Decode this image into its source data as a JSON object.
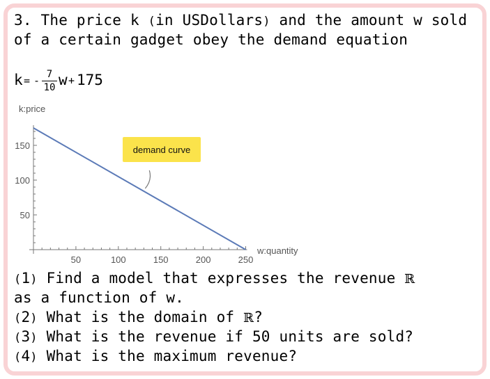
{
  "problem": {
    "line1": "3. The price k (in USDollars) and the amount w sold",
    "line2": "of a certain gadget obey the demand equation",
    "equation": {
      "lhs": "k",
      "equals": "=",
      "minus": "-",
      "numerator": "7",
      "denominator": "10",
      "variable": "w",
      "plus": "+",
      "constant": "175"
    }
  },
  "chart_data": {
    "type": "line",
    "xlabel": "w:quantity",
    "ylabel": "k:price",
    "xlim": [
      0,
      250
    ],
    "ylim": [
      0,
      175
    ],
    "x_ticks": [
      50,
      100,
      150,
      200,
      250
    ],
    "y_ticks": [
      50,
      100,
      150
    ],
    "series": [
      {
        "x": [
          0,
          250
        ],
        "y": [
          175,
          0
        ]
      }
    ],
    "annotation": {
      "text": "demand curve",
      "points_to": {
        "x": 130,
        "y": 84
      }
    },
    "grid": false,
    "line_color": "#5b7ab7",
    "annotation_color": "#fbe34b"
  },
  "questions": {
    "q1_a": "Find a model that expresses the revenue",
    "q1_r": "ℝ",
    "q1_b": "as a function of w.",
    "q2": "What is the domain of",
    "q2_r": "ℝ",
    "q2_end": "?",
    "q3": "What is the revenue if 50 units are sold?",
    "q4": "What is the maximum revenue?",
    "n1": "1",
    "n2": "2",
    "n3": "3",
    "n4": "4"
  }
}
